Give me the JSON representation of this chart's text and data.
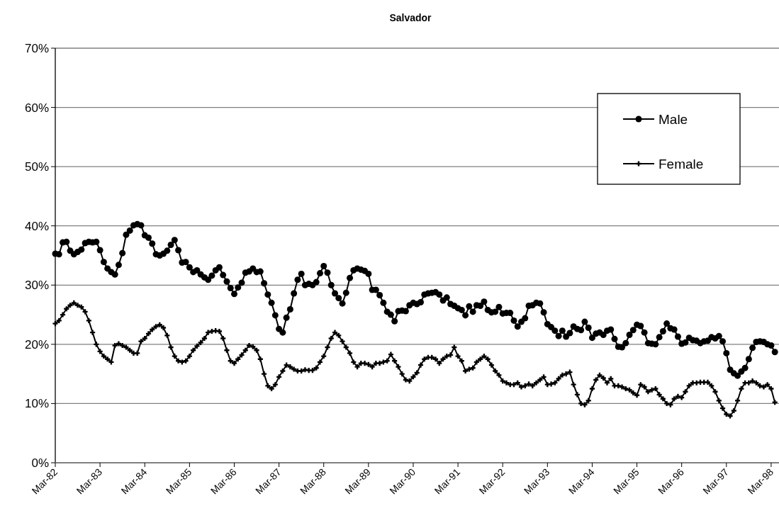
{
  "chart_data": {
    "type": "line",
    "title": "Salvador",
    "categories": [
      "Mar-82",
      null,
      null,
      null,
      null,
      null,
      null,
      null,
      null,
      null,
      null,
      null,
      "Mar-83",
      null,
      null,
      null,
      null,
      null,
      null,
      null,
      null,
      null,
      null,
      null,
      "Mar-84",
      null,
      null,
      null,
      null,
      null,
      null,
      null,
      null,
      null,
      null,
      null,
      "Mar-85",
      null,
      null,
      null,
      null,
      null,
      null,
      null,
      null,
      null,
      null,
      null,
      "Mar-86",
      null,
      null,
      null,
      null,
      null,
      null,
      null,
      null,
      null,
      null,
      null,
      "Mar-87",
      null,
      null,
      null,
      null,
      null,
      null,
      null,
      null,
      null,
      null,
      null,
      "Mar-88",
      null,
      null,
      null,
      null,
      null,
      null,
      null,
      null,
      null,
      null,
      null,
      "Mar-89",
      null,
      null,
      null,
      null,
      null,
      null,
      null,
      null,
      null,
      null,
      null,
      "Mar-90",
      null,
      null,
      null,
      null,
      null,
      null,
      null,
      null,
      null,
      null,
      null,
      "Mar-91",
      null,
      null,
      null,
      null,
      null,
      null,
      null,
      null,
      null,
      null,
      null,
      "Mar-92",
      null,
      null,
      null,
      null,
      null,
      null,
      null,
      null,
      null,
      null,
      null,
      "Mar-93",
      null,
      null,
      null,
      null,
      null,
      null,
      null,
      null,
      null,
      null,
      null,
      "Mar-94",
      null,
      null,
      null,
      null,
      null,
      null,
      null,
      null,
      null,
      null,
      null,
      "Mar-95",
      null,
      null,
      null,
      null,
      null,
      null,
      null,
      null,
      null,
      null,
      null,
      "Mar-96",
      null,
      null,
      null,
      null,
      null,
      null,
      null,
      null,
      null,
      null,
      null,
      "Mar-97",
      null,
      null,
      null,
      null,
      null,
      null,
      null,
      null,
      null,
      null,
      null,
      "Mar-98",
      null
    ],
    "series": [
      {
        "name": "Male",
        "color": "#000000",
        "marker": "circle",
        "values": [
          35.3,
          35.2,
          37.2,
          37.3,
          35.8,
          35.2,
          35.6,
          36.0,
          37.1,
          37.3,
          37.2,
          37.3,
          35.9,
          33.9,
          32.8,
          32.2,
          31.8,
          33.4,
          35.4,
          38.5,
          39.2,
          40.1,
          40.3,
          40.1,
          38.4,
          38.0,
          37.0,
          35.2,
          35.0,
          35.3,
          35.8,
          36.8,
          37.6,
          35.9,
          33.8,
          33.9,
          33.0,
          32.2,
          32.5,
          31.8,
          31.3,
          30.9,
          31.6,
          32.5,
          33.0,
          31.7,
          30.6,
          29.5,
          28.5,
          29.6,
          30.4,
          32.1,
          32.3,
          32.8,
          32.2,
          32.3,
          30.3,
          28.4,
          27.0,
          24.9,
          22.6,
          22.0,
          24.5,
          25.9,
          28.6,
          30.9,
          31.9,
          30.0,
          30.2,
          30.0,
          30.5,
          32.0,
          33.2,
          32.1,
          30.0,
          28.6,
          27.8,
          26.9,
          28.7,
          31.2,
          32.5,
          32.8,
          32.6,
          32.4,
          31.9,
          29.2,
          29.2,
          28.3,
          27.0,
          25.5,
          25.0,
          23.9,
          25.6,
          25.7,
          25.6,
          26.6,
          27.0,
          26.8,
          27.1,
          28.4,
          28.6,
          28.7,
          28.8,
          28.4,
          27.4,
          27.9,
          26.8,
          26.5,
          26.1,
          25.8,
          24.9,
          26.4,
          25.5,
          26.6,
          26.5,
          27.2,
          25.8,
          25.4,
          25.5,
          26.3,
          25.2,
          25.3,
          25.3,
          24.0,
          23.0,
          23.8,
          24.4,
          26.5,
          26.6,
          27.0,
          26.9,
          25.4,
          23.4,
          22.9,
          22.3,
          21.4,
          22.3,
          21.3,
          21.9,
          23.0,
          22.6,
          22.4,
          23.8,
          22.8,
          21.1,
          21.8,
          22.0,
          21.6,
          22.3,
          22.5,
          20.9,
          19.6,
          19.5,
          20.2,
          21.6,
          22.4,
          23.3,
          23.1,
          22.0,
          20.2,
          20.1,
          20.0,
          21.2,
          22.2,
          23.5,
          22.7,
          22.5,
          21.3,
          20.1,
          20.3,
          21.1,
          20.7,
          20.6,
          20.2,
          20.5,
          20.6,
          21.2,
          21.0,
          21.4,
          20.5,
          18.5,
          15.7,
          15.1,
          14.7,
          15.4,
          16.0,
          17.5,
          19.4,
          20.4,
          20.5,
          20.4,
          20.0,
          19.8,
          18.7
        ]
      },
      {
        "name": "Female",
        "color": "#000000",
        "marker": "cross",
        "values": [
          23.5,
          24.0,
          25.0,
          26.0,
          26.6,
          27.0,
          26.6,
          26.3,
          25.5,
          24.0,
          22.0,
          20.0,
          18.8,
          18.0,
          17.5,
          17.0,
          19.8,
          20.1,
          19.8,
          19.5,
          19.0,
          18.5,
          18.5,
          20.5,
          21.0,
          21.8,
          22.5,
          23.0,
          23.3,
          22.8,
          21.5,
          19.5,
          18.0,
          17.2,
          17.0,
          17.2,
          18.0,
          19.0,
          19.7,
          20.3,
          21.0,
          22.0,
          22.2,
          22.3,
          22.2,
          21.0,
          19.0,
          17.2,
          16.8,
          17.5,
          18.2,
          19.0,
          19.8,
          19.6,
          19.0,
          17.5,
          15.0,
          13.0,
          12.5,
          13.2,
          14.5,
          15.5,
          16.5,
          16.2,
          15.8,
          15.5,
          15.5,
          15.7,
          15.6,
          15.6,
          16.0,
          17.0,
          18.0,
          19.5,
          21.0,
          22.0,
          21.5,
          20.5,
          19.5,
          18.5,
          17.0,
          16.2,
          16.8,
          16.8,
          16.6,
          16.2,
          16.8,
          16.8,
          17.0,
          17.2,
          18.3,
          17.2,
          16.2,
          15.0,
          14.0,
          13.8,
          14.5,
          15.2,
          16.5,
          17.5,
          17.8,
          17.8,
          17.5,
          16.8,
          17.5,
          18.0,
          18.2,
          19.5,
          18.0,
          17.2,
          15.5,
          15.8,
          16.0,
          17.0,
          17.5,
          18.0,
          17.5,
          16.5,
          15.5,
          14.8,
          13.8,
          13.5,
          13.2,
          13.2,
          13.5,
          12.8,
          13.0,
          13.3,
          13.0,
          13.5,
          14.0,
          14.5,
          13.2,
          13.3,
          13.5,
          14.2,
          14.8,
          15.0,
          15.3,
          13.2,
          11.5,
          10.0,
          9.8,
          10.5,
          12.5,
          14.0,
          14.8,
          14.3,
          13.5,
          14.2,
          13.0,
          13.0,
          12.8,
          12.5,
          12.3,
          11.8,
          11.4,
          13.2,
          12.8,
          12.0,
          12.3,
          12.5,
          11.5,
          10.8,
          10.0,
          9.8,
          10.8,
          11.2,
          11.0,
          12.0,
          13.0,
          13.5,
          13.5,
          13.6,
          13.6,
          13.6,
          13.0,
          12.0,
          10.5,
          9.2,
          8.2,
          7.9,
          8.8,
          10.5,
          12.5,
          13.5,
          13.5,
          13.8,
          13.5,
          13.0,
          12.8,
          13.2,
          12.5,
          10.2
        ]
      }
    ],
    "ylim": [
      0,
      70
    ],
    "yticks": [
      {
        "value": 0,
        "label": "0%"
      },
      {
        "value": 10,
        "label": "10%"
      },
      {
        "value": 20,
        "label": "20%"
      },
      {
        "value": 30,
        "label": "30%"
      },
      {
        "value": 40,
        "label": "40%"
      },
      {
        "value": 50,
        "label": "50%"
      },
      {
        "value": 60,
        "label": "60%"
      },
      {
        "value": 70,
        "label": "70%"
      }
    ],
    "grid": "y",
    "legend": "top right",
    "line_style": "solid"
  }
}
